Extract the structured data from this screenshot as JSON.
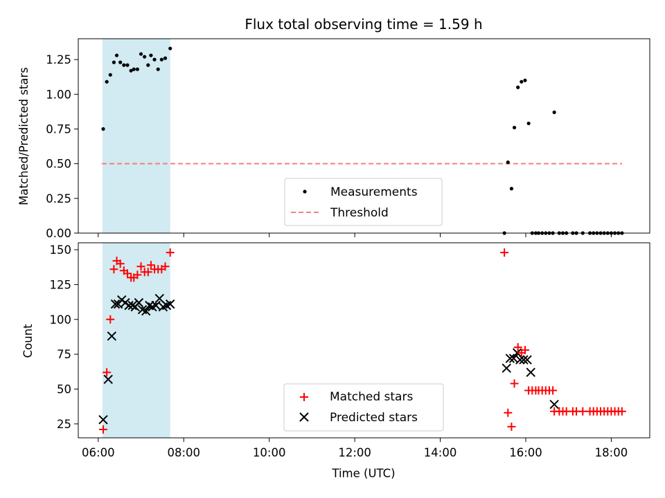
{
  "chart_data": [
    {
      "type": "scatter",
      "title": "Flux total observing time = 1.59 h",
      "ylabel": "Matched/Predicted stars",
      "xlim": [
        "05:32",
        "18:54"
      ],
      "ylim": [
        0,
        1.4
      ],
      "yticks": [
        0.0,
        0.25,
        0.5,
        0.75,
        1.0,
        1.25
      ],
      "ytick_labels": [
        "0.00",
        "0.25",
        "0.50",
        "0.75",
        "1.00",
        "1.25"
      ],
      "shaded_span": [
        "06:06",
        "07:41"
      ],
      "shade_color": "#add8e6",
      "legend_position": "lower center",
      "legend": [
        "Measurements",
        "Threshold"
      ],
      "threshold": {
        "value": 0.5,
        "from": "06:05",
        "to": "18:15",
        "color": "#f08080",
        "style": "dashed"
      },
      "series": [
        {
          "name": "Measurements",
          "color": "#000000",
          "marker": "dot",
          "points": [
            [
              "06:07",
              0.75
            ],
            [
              "06:12",
              1.09
            ],
            [
              "06:17",
              1.14
            ],
            [
              "06:22",
              1.23
            ],
            [
              "06:26",
              1.28
            ],
            [
              "06:31",
              1.23
            ],
            [
              "06:36",
              1.21
            ],
            [
              "06:41",
              1.21
            ],
            [
              "06:46",
              1.17
            ],
            [
              "06:50",
              1.18
            ],
            [
              "06:55",
              1.18
            ],
            [
              "07:00",
              1.29
            ],
            [
              "07:05",
              1.27
            ],
            [
              "07:10",
              1.21
            ],
            [
              "07:14",
              1.28
            ],
            [
              "07:19",
              1.25
            ],
            [
              "07:24",
              1.18
            ],
            [
              "07:29",
              1.25
            ],
            [
              "07:34",
              1.26
            ],
            [
              "07:41",
              1.33
            ],
            [
              "15:30",
              0.0
            ],
            [
              "15:35",
              0.51
            ],
            [
              "15:40",
              0.32
            ],
            [
              "15:44",
              0.76
            ],
            [
              "15:49",
              1.05
            ],
            [
              "15:54",
              1.09
            ],
            [
              "15:59",
              1.1
            ],
            [
              "16:04",
              0.79
            ],
            [
              "16:09",
              0.0
            ],
            [
              "16:14",
              0.0
            ],
            [
              "16:18",
              0.0
            ],
            [
              "16:23",
              0.0
            ],
            [
              "16:28",
              0.0
            ],
            [
              "16:33",
              0.0
            ],
            [
              "16:38",
              0.0
            ],
            [
              "16:40",
              0.87
            ],
            [
              "16:47",
              0.0
            ],
            [
              "16:52",
              0.0
            ],
            [
              "16:57",
              0.0
            ],
            [
              "17:06",
              0.0
            ],
            [
              "17:11",
              0.0
            ],
            [
              "17:20",
              0.0
            ],
            [
              "17:30",
              0.0
            ],
            [
              "17:35",
              0.0
            ],
            [
              "17:40",
              0.0
            ],
            [
              "17:45",
              0.0
            ],
            [
              "17:50",
              0.0
            ],
            [
              "17:55",
              0.0
            ],
            [
              "18:00",
              0.0
            ],
            [
              "18:05",
              0.0
            ],
            [
              "18:10",
              0.0
            ],
            [
              "18:15",
              0.0
            ]
          ]
        }
      ]
    },
    {
      "type": "scatter",
      "xlabel": "Time (UTC)",
      "ylabel": "Count",
      "xlim": [
        "05:32",
        "18:54"
      ],
      "ylim": [
        15,
        155
      ],
      "xticks": [
        "06:00",
        "08:00",
        "10:00",
        "12:00",
        "14:00",
        "16:00",
        "18:00"
      ],
      "yticks": [
        25,
        50,
        75,
        100,
        125,
        150
      ],
      "shaded_span": [
        "06:06",
        "07:41"
      ],
      "shade_color": "#add8e6",
      "legend_position": "lower center",
      "legend": [
        "Matched stars",
        "Predicted stars"
      ],
      "series": [
        {
          "name": "Matched stars",
          "color": "#ff0000",
          "marker": "plus",
          "points": [
            [
              "06:07",
              21
            ],
            [
              "06:12",
              62
            ],
            [
              "06:17",
              100
            ],
            [
              "06:22",
              136
            ],
            [
              "06:26",
              142
            ],
            [
              "06:31",
              140
            ],
            [
              "06:36",
              135
            ],
            [
              "06:41",
              133
            ],
            [
              "06:46",
              130
            ],
            [
              "06:50",
              130
            ],
            [
              "06:55",
              132
            ],
            [
              "07:00",
              138
            ],
            [
              "07:05",
              134
            ],
            [
              "07:10",
              134
            ],
            [
              "07:14",
              139
            ],
            [
              "07:19",
              136
            ],
            [
              "07:24",
              136
            ],
            [
              "07:29",
              136
            ],
            [
              "07:34",
              138
            ],
            [
              "07:41",
              148
            ],
            [
              "15:30",
              148
            ],
            [
              "15:35",
              33
            ],
            [
              "15:40",
              23
            ],
            [
              "15:44",
              54
            ],
            [
              "15:49",
              80
            ],
            [
              "15:54",
              76
            ],
            [
              "15:59",
              78
            ],
            [
              "16:04",
              49
            ],
            [
              "16:09",
              49
            ],
            [
              "16:14",
              49
            ],
            [
              "16:18",
              49
            ],
            [
              "16:23",
              49
            ],
            [
              "16:28",
              49
            ],
            [
              "16:33",
              49
            ],
            [
              "16:38",
              49
            ],
            [
              "16:40",
              34
            ],
            [
              "16:47",
              34
            ],
            [
              "16:52",
              34
            ],
            [
              "16:57",
              34
            ],
            [
              "17:06",
              34
            ],
            [
              "17:11",
              34
            ],
            [
              "17:20",
              34
            ],
            [
              "17:30",
              34
            ],
            [
              "17:35",
              34
            ],
            [
              "17:40",
              34
            ],
            [
              "17:45",
              34
            ],
            [
              "17:50",
              34
            ],
            [
              "17:55",
              34
            ],
            [
              "18:00",
              34
            ],
            [
              "18:05",
              34
            ],
            [
              "18:10",
              34
            ],
            [
              "18:15",
              34
            ]
          ]
        },
        {
          "name": "Predicted stars",
          "color": "#000000",
          "marker": "x",
          "points": [
            [
              "06:07",
              28
            ],
            [
              "06:14",
              57
            ],
            [
              "06:19",
              88
            ],
            [
              "06:24",
              111
            ],
            [
              "06:28",
              111
            ],
            [
              "06:33",
              114
            ],
            [
              "06:38",
              112
            ],
            [
              "06:43",
              110
            ],
            [
              "06:48",
              110
            ],
            [
              "06:52",
              109
            ],
            [
              "06:57",
              112
            ],
            [
              "07:02",
              107
            ],
            [
              "07:07",
              106
            ],
            [
              "07:12",
              110
            ],
            [
              "07:16",
              109
            ],
            [
              "07:21",
              110
            ],
            [
              "07:26",
              115
            ],
            [
              "07:31",
              109
            ],
            [
              "07:36",
              110
            ],
            [
              "07:41",
              111
            ],
            [
              "15:33",
              65
            ],
            [
              "15:38",
              72
            ],
            [
              "15:43",
              72
            ],
            [
              "15:48",
              76
            ],
            [
              "15:52",
              71
            ],
            [
              "15:57",
              71
            ],
            [
              "16:02",
              71
            ],
            [
              "16:07",
              62
            ],
            [
              "16:40",
              39
            ]
          ]
        }
      ]
    }
  ]
}
